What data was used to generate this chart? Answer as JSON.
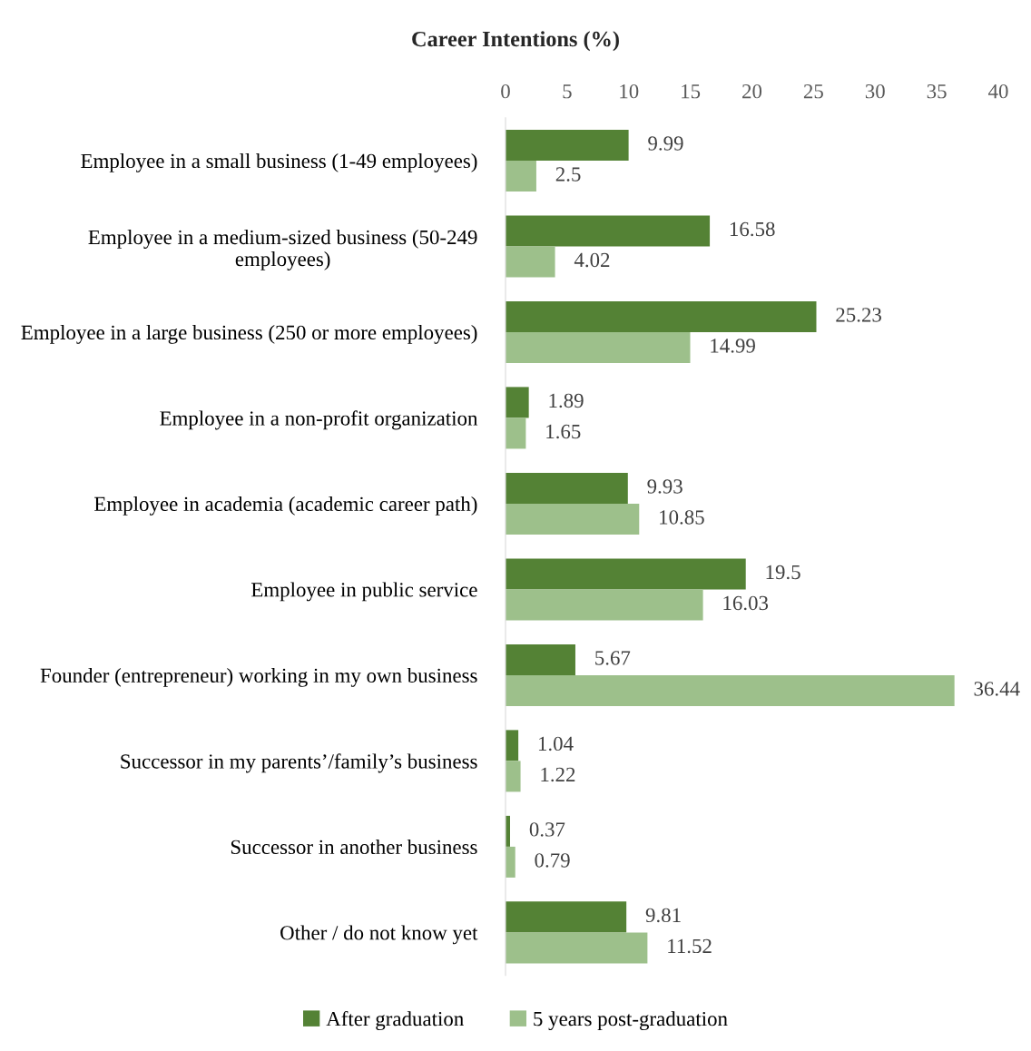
{
  "chart_data": {
    "type": "bar",
    "orientation": "horizontal",
    "title": "Career Intentions (%)",
    "categories": [
      "Employee in a small business (1-49 employees)",
      "Employee in a medium-sized business (50-249 employees)",
      "Employee in a large business (250 or more employees)",
      "Employee in a non-profit organization",
      "Employee in academia (academic career path)",
      "Employee in public service",
      "Founder (entrepreneur) working in my own business",
      "Successor in my parents’/family’s business",
      "Successor in another business",
      "Other / do not know yet"
    ],
    "series": [
      {
        "name": "After graduation",
        "color": "#548235",
        "values": [
          9.99,
          16.58,
          25.23,
          1.89,
          9.93,
          19.5,
          5.67,
          1.04,
          0.37,
          9.81
        ]
      },
      {
        "name": "5 years post-graduation",
        "color": "#9dc08b",
        "values": [
          2.5,
          4.02,
          14.99,
          1.65,
          10.85,
          16.03,
          36.44,
          1.22,
          0.79,
          11.52
        ]
      }
    ],
    "xlim": [
      0,
      40
    ],
    "xticks": [
      0,
      5,
      10,
      15,
      20,
      25,
      30,
      35,
      40
    ],
    "data_labels": true,
    "grid": false,
    "legend": "bottom"
  }
}
